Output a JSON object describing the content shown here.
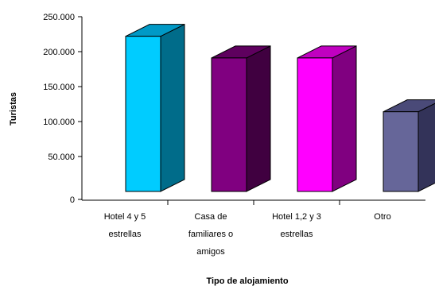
{
  "chart_data": {
    "type": "bar",
    "style": "3d",
    "title": "",
    "xlabel": "Tipo de alojamiento",
    "ylabel": "Turistas",
    "ylim": [
      0,
      250000
    ],
    "yticks": [
      "0",
      "50.000",
      "100.000",
      "150.000",
      "200.000",
      "250.000"
    ],
    "grid": false,
    "legend": "none",
    "categories": [
      [
        "Hotel 4 y 5",
        "estrellas"
      ],
      [
        "Casa de",
        "familiares o",
        "amigos"
      ],
      [
        "Hotel 1,2 y 3",
        "estrellas"
      ],
      [
        "Otro"
      ]
    ],
    "values": [
      222000,
      191000,
      191000,
      114000
    ],
    "colors": [
      {
        "front": "#00CCFF",
        "side": "#006C8A",
        "top": "#0099C6"
      },
      {
        "front": "#800080",
        "side": "#400040",
        "top": "#5E005E"
      },
      {
        "front": "#FF00FF",
        "side": "#800080",
        "top": "#C000C0"
      },
      {
        "front": "#666699",
        "side": "#333359",
        "top": "#4A4A78"
      }
    ]
  }
}
